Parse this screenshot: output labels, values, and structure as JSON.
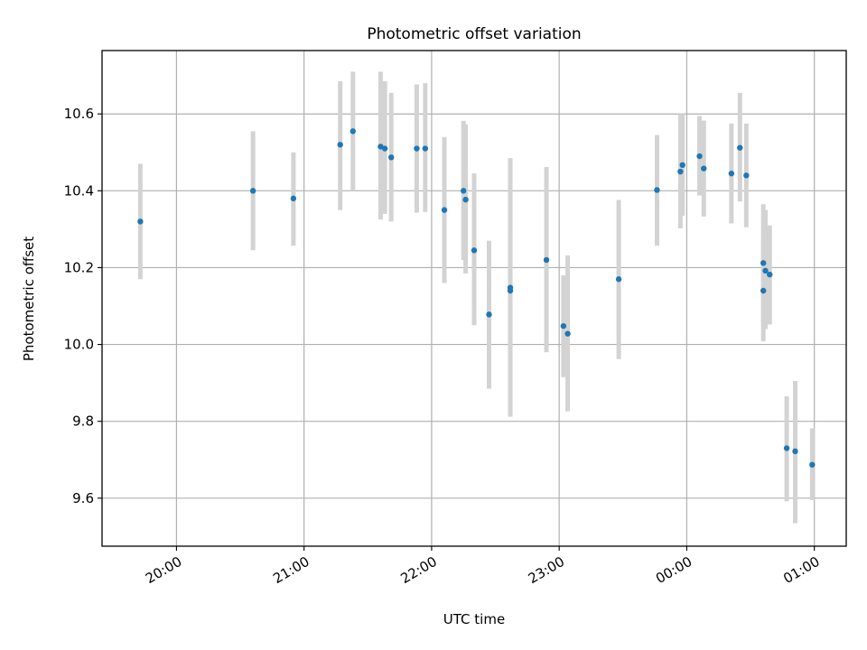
{
  "chart_data": {
    "type": "scatter",
    "title": "Photometric offset variation",
    "xlabel": "UTC time",
    "ylabel": "Photometric offset",
    "x_ticks": [
      "20:00",
      "21:00",
      "22:00",
      "23:00",
      "00:00",
      "01:00"
    ],
    "y_ticks": [
      "9.6",
      "9.8",
      "10.0",
      "10.2",
      "10.4",
      "10.6"
    ],
    "xlim": [
      "19:25",
      "01:15"
    ],
    "ylim": [
      9.475,
      10.765
    ],
    "grid": true,
    "colors": {
      "point": "#1f77b4",
      "error_bar": "#d3d3d3",
      "grid": "#b0b0b0"
    },
    "points": [
      {
        "x": "19:43",
        "y": 10.32,
        "ylo": 10.17,
        "yhi": 10.47
      },
      {
        "x": "20:36",
        "y": 10.4,
        "ylo": 10.245,
        "yhi": 10.555
      },
      {
        "x": "20:55",
        "y": 10.38,
        "ylo": 10.257,
        "yhi": 10.5
      },
      {
        "x": "21:17",
        "y": 10.52,
        "ylo": 10.35,
        "yhi": 10.685
      },
      {
        "x": "21:23",
        "y": 10.555,
        "ylo": 10.4,
        "yhi": 10.71
      },
      {
        "x": "21:36",
        "y": 10.515,
        "ylo": 10.325,
        "yhi": 10.71
      },
      {
        "x": "21:38",
        "y": 10.51,
        "ylo": 10.34,
        "yhi": 10.685
      },
      {
        "x": "21:41",
        "y": 10.487,
        "ylo": 10.32,
        "yhi": 10.655
      },
      {
        "x": "21:53",
        "y": 10.51,
        "ylo": 10.343,
        "yhi": 10.677
      },
      {
        "x": "21:57",
        "y": 10.51,
        "ylo": 10.345,
        "yhi": 10.68
      },
      {
        "x": "22:06",
        "y": 10.35,
        "ylo": 10.16,
        "yhi": 10.54
      },
      {
        "x": "22:15",
        "y": 10.4,
        "ylo": 10.22,
        "yhi": 10.582
      },
      {
        "x": "22:16",
        "y": 10.377,
        "ylo": 10.185,
        "yhi": 10.573
      },
      {
        "x": "22:20",
        "y": 10.245,
        "ylo": 10.05,
        "yhi": 10.445
      },
      {
        "x": "22:27",
        "y": 10.078,
        "ylo": 9.885,
        "yhi": 10.27
      },
      {
        "x": "22:37",
        "y": 10.148,
        "ylo": 9.812,
        "yhi": 10.485
      },
      {
        "x": "22:37",
        "y": 10.14,
        "ylo": 9.985,
        "yhi": 10.3
      },
      {
        "x": "22:54",
        "y": 10.22,
        "ylo": 9.98,
        "yhi": 10.462
      },
      {
        "x": "23:02",
        "y": 10.048,
        "ylo": 9.915,
        "yhi": 10.18
      },
      {
        "x": "23:04",
        "y": 10.028,
        "ylo": 9.826,
        "yhi": 10.232
      },
      {
        "x": "23:28",
        "y": 10.17,
        "ylo": 9.962,
        "yhi": 10.376
      },
      {
        "x": "23:46",
        "y": 10.402,
        "ylo": 10.257,
        "yhi": 10.545
      },
      {
        "x": "23:57",
        "y": 10.45,
        "ylo": 10.302,
        "yhi": 10.6
      },
      {
        "x": "23:58",
        "y": 10.467,
        "ylo": 10.335,
        "yhi": 10.6
      },
      {
        "x": "00:06",
        "y": 10.49,
        "ylo": 10.388,
        "yhi": 10.595
      },
      {
        "x": "00:08",
        "y": 10.458,
        "ylo": 10.333,
        "yhi": 10.583
      },
      {
        "x": "00:21",
        "y": 10.445,
        "ylo": 10.315,
        "yhi": 10.575
      },
      {
        "x": "00:25",
        "y": 10.512,
        "ylo": 10.372,
        "yhi": 10.655
      },
      {
        "x": "00:28",
        "y": 10.44,
        "ylo": 10.305,
        "yhi": 10.575
      },
      {
        "x": "00:36",
        "y": 10.212,
        "ylo": 10.058,
        "yhi": 10.365
      },
      {
        "x": "00:36",
        "y": 10.14,
        "ylo": 10.008,
        "yhi": 10.27
      },
      {
        "x": "00:37",
        "y": 10.192,
        "ylo": 10.04,
        "yhi": 10.35
      },
      {
        "x": "00:39",
        "y": 10.182,
        "ylo": 10.052,
        "yhi": 10.31
      },
      {
        "x": "00:47",
        "y": 9.73,
        "ylo": 9.592,
        "yhi": 9.865
      },
      {
        "x": "00:51",
        "y": 9.722,
        "ylo": 9.535,
        "yhi": 9.905
      },
      {
        "x": "00:59",
        "y": 9.687,
        "ylo": 9.595,
        "yhi": 9.782
      }
    ]
  }
}
